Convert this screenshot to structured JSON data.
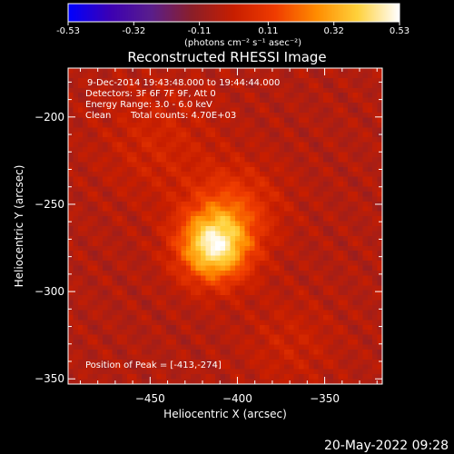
{
  "chart_data": {
    "type": "heatmap",
    "title": "Reconstructed RHESSI Image",
    "xlabel": "Heliocentric X (arcsec)",
    "ylabel": "Heliocentric Y (arcsec)",
    "xlim": [
      -497,
      -317
    ],
    "ylim": [
      -353,
      -172
    ],
    "x_ticks": [
      -450,
      -400,
      -350
    ],
    "y_ticks": [
      -200,
      -250,
      -300,
      -350
    ],
    "colorbar": {
      "range": [
        -0.53,
        0.53
      ],
      "tick_values": [
        -0.53,
        -0.32,
        -0.11,
        0.11,
        0.32,
        0.53
      ],
      "tick_labels": [
        "-0.53",
        "-0.32",
        "-0.11",
        "0.11",
        "0.32",
        "0.53"
      ],
      "unit_label": "(photons cm⁻² s⁻¹ asec⁻²)"
    },
    "colormap": [
      "#0000ff",
      "#3c00b4",
      "#5a1e8c",
      "#8c1e28",
      "#c81e00",
      "#f03c00",
      "#ff8c00",
      "#ffd23c",
      "#ffffff"
    ],
    "peak": {
      "x": -413,
      "y": -274,
      "value": 0.53
    },
    "annotations": {
      "time_range": "9-Dec-2014 19:43:48.000 to 19:44:44.000",
      "detectors": "Detectors: 3F 6F 7F 9F, Att 0",
      "energy_range": "Energy Range: 3.0 - 6.0 keV",
      "method": "Clean",
      "total_counts": "Total counts: 4.70E+03",
      "peak_label": "Position of Peak = [-413,-274]"
    }
  },
  "footer": {
    "timestamp": "20-May-2022 09:28"
  }
}
